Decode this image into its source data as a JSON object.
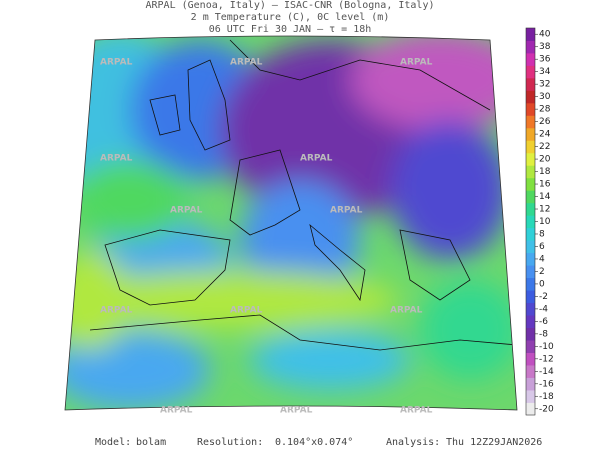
{
  "header": {
    "lines": [
      "ARPAL (Genoa, Italy)  –  ISAC-CNR (Bologna, Italy)",
      "2 m Temperature (C), 0C level (m)",
      "06 UTC Fri 30 JAN  –  τ = 18h"
    ]
  },
  "watermark": "ARPAL",
  "colorbar": {
    "lim": [
      -21,
      41
    ],
    "ticks": [
      40,
      38,
      36,
      34,
      32,
      30,
      28,
      26,
      24,
      22,
      20,
      18,
      16,
      14,
      12,
      10,
      8,
      6,
      4,
      2,
      0,
      -2,
      -4,
      -6,
      -8,
      -10,
      -12,
      -14,
      -16,
      -18,
      -20
    ],
    "colors": [
      "#ececec",
      "#d8c8e8",
      "#c8a0d8",
      "#c878c8",
      "#c050c0",
      "#9040b0",
      "#7030a8",
      "#6438c0",
      "#5048d0",
      "#3c5ce0",
      "#3c78e8",
      "#4890f0",
      "#48a8f0",
      "#40c0e8",
      "#30d0d8",
      "#28d8b8",
      "#30d890",
      "#50d860",
      "#80e040",
      "#b0e840",
      "#e0f040",
      "#f0d030",
      "#f0a828",
      "#f07828",
      "#e04828",
      "#c02828",
      "#d02850",
      "#e03080",
      "#d030b0",
      "#a028b0",
      "#7820a0"
    ]
  },
  "footer": {
    "model_label": "Model:",
    "model": "bolam",
    "resolution_label": "Resolution:",
    "resolution": "0.104°x0.074°",
    "analysis_label": "Analysis:",
    "analysis": "Thu 12Z29JAN2026"
  }
}
